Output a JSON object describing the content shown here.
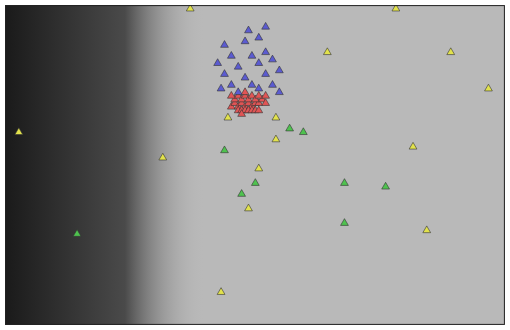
{
  "chart_data": {
    "type": "scatter",
    "xlim": [
      -27,
      45.9
    ],
    "ylim": [
      16,
      60
    ],
    "grid": false,
    "tick_labels": false,
    "series": [
      {
        "color": "#5b5bd0",
        "marker": "triangle",
        "x": [
          5,
          8,
          10,
          6,
          9,
          11,
          4,
          7,
          10,
          12,
          5,
          8,
          11,
          13,
          6,
          9,
          12,
          7,
          10,
          4.5,
          13,
          8.5,
          11
        ],
        "values": [
          54.5,
          55,
          55.5,
          53,
          53,
          53.5,
          52,
          51.5,
          52,
          52.5,
          50.5,
          50,
          50.5,
          51,
          49,
          49,
          49,
          48,
          48.5,
          48.5,
          48,
          56.5,
          57
        ]
      },
      {
        "color": "#e05555",
        "marker": "triangle",
        "x": [
          6,
          6.5,
          7,
          7.5,
          8,
          8.5,
          9,
          9.5,
          10,
          10.5,
          6.5,
          7,
          7.5,
          8,
          8.5,
          9,
          9.5,
          10,
          11,
          7,
          7.5,
          8,
          8.5,
          9,
          9.5,
          6,
          8,
          10,
          11,
          7.5
        ],
        "values": [
          46,
          46.5,
          46,
          46.5,
          46,
          46.5,
          46,
          46.5,
          46.5,
          47,
          47,
          47.5,
          47,
          47.5,
          47,
          47.5,
          47,
          47.5,
          46.5,
          45.5,
          45.5,
          45.5,
          45.5,
          45.5,
          45.5,
          47.5,
          48,
          45.5,
          47.5,
          45
        ]
      },
      {
        "color": "#e2e24c",
        "marker": "triangle",
        "x": [
          0,
          30,
          20,
          38,
          5.5,
          12.5,
          10,
          -25,
          -4,
          12.5,
          32.5,
          43.5,
          34.5,
          8.5,
          4.5
        ],
        "values": [
          59.5,
          59.5,
          53.5,
          53.5,
          44.5,
          44.5,
          37.5,
          42.5,
          39,
          41.5,
          40.5,
          48.5,
          29,
          32,
          20.5
        ]
      },
      {
        "color": "#4fc24f",
        "marker": "triangle",
        "x": [
          5,
          14.5,
          16.5,
          9.5,
          7.5,
          22.5,
          28.5,
          22.5,
          -16.5
        ],
        "values": [
          40,
          43,
          42.5,
          35.5,
          34,
          35.5,
          35,
          30,
          28.5
        ]
      }
    ]
  }
}
